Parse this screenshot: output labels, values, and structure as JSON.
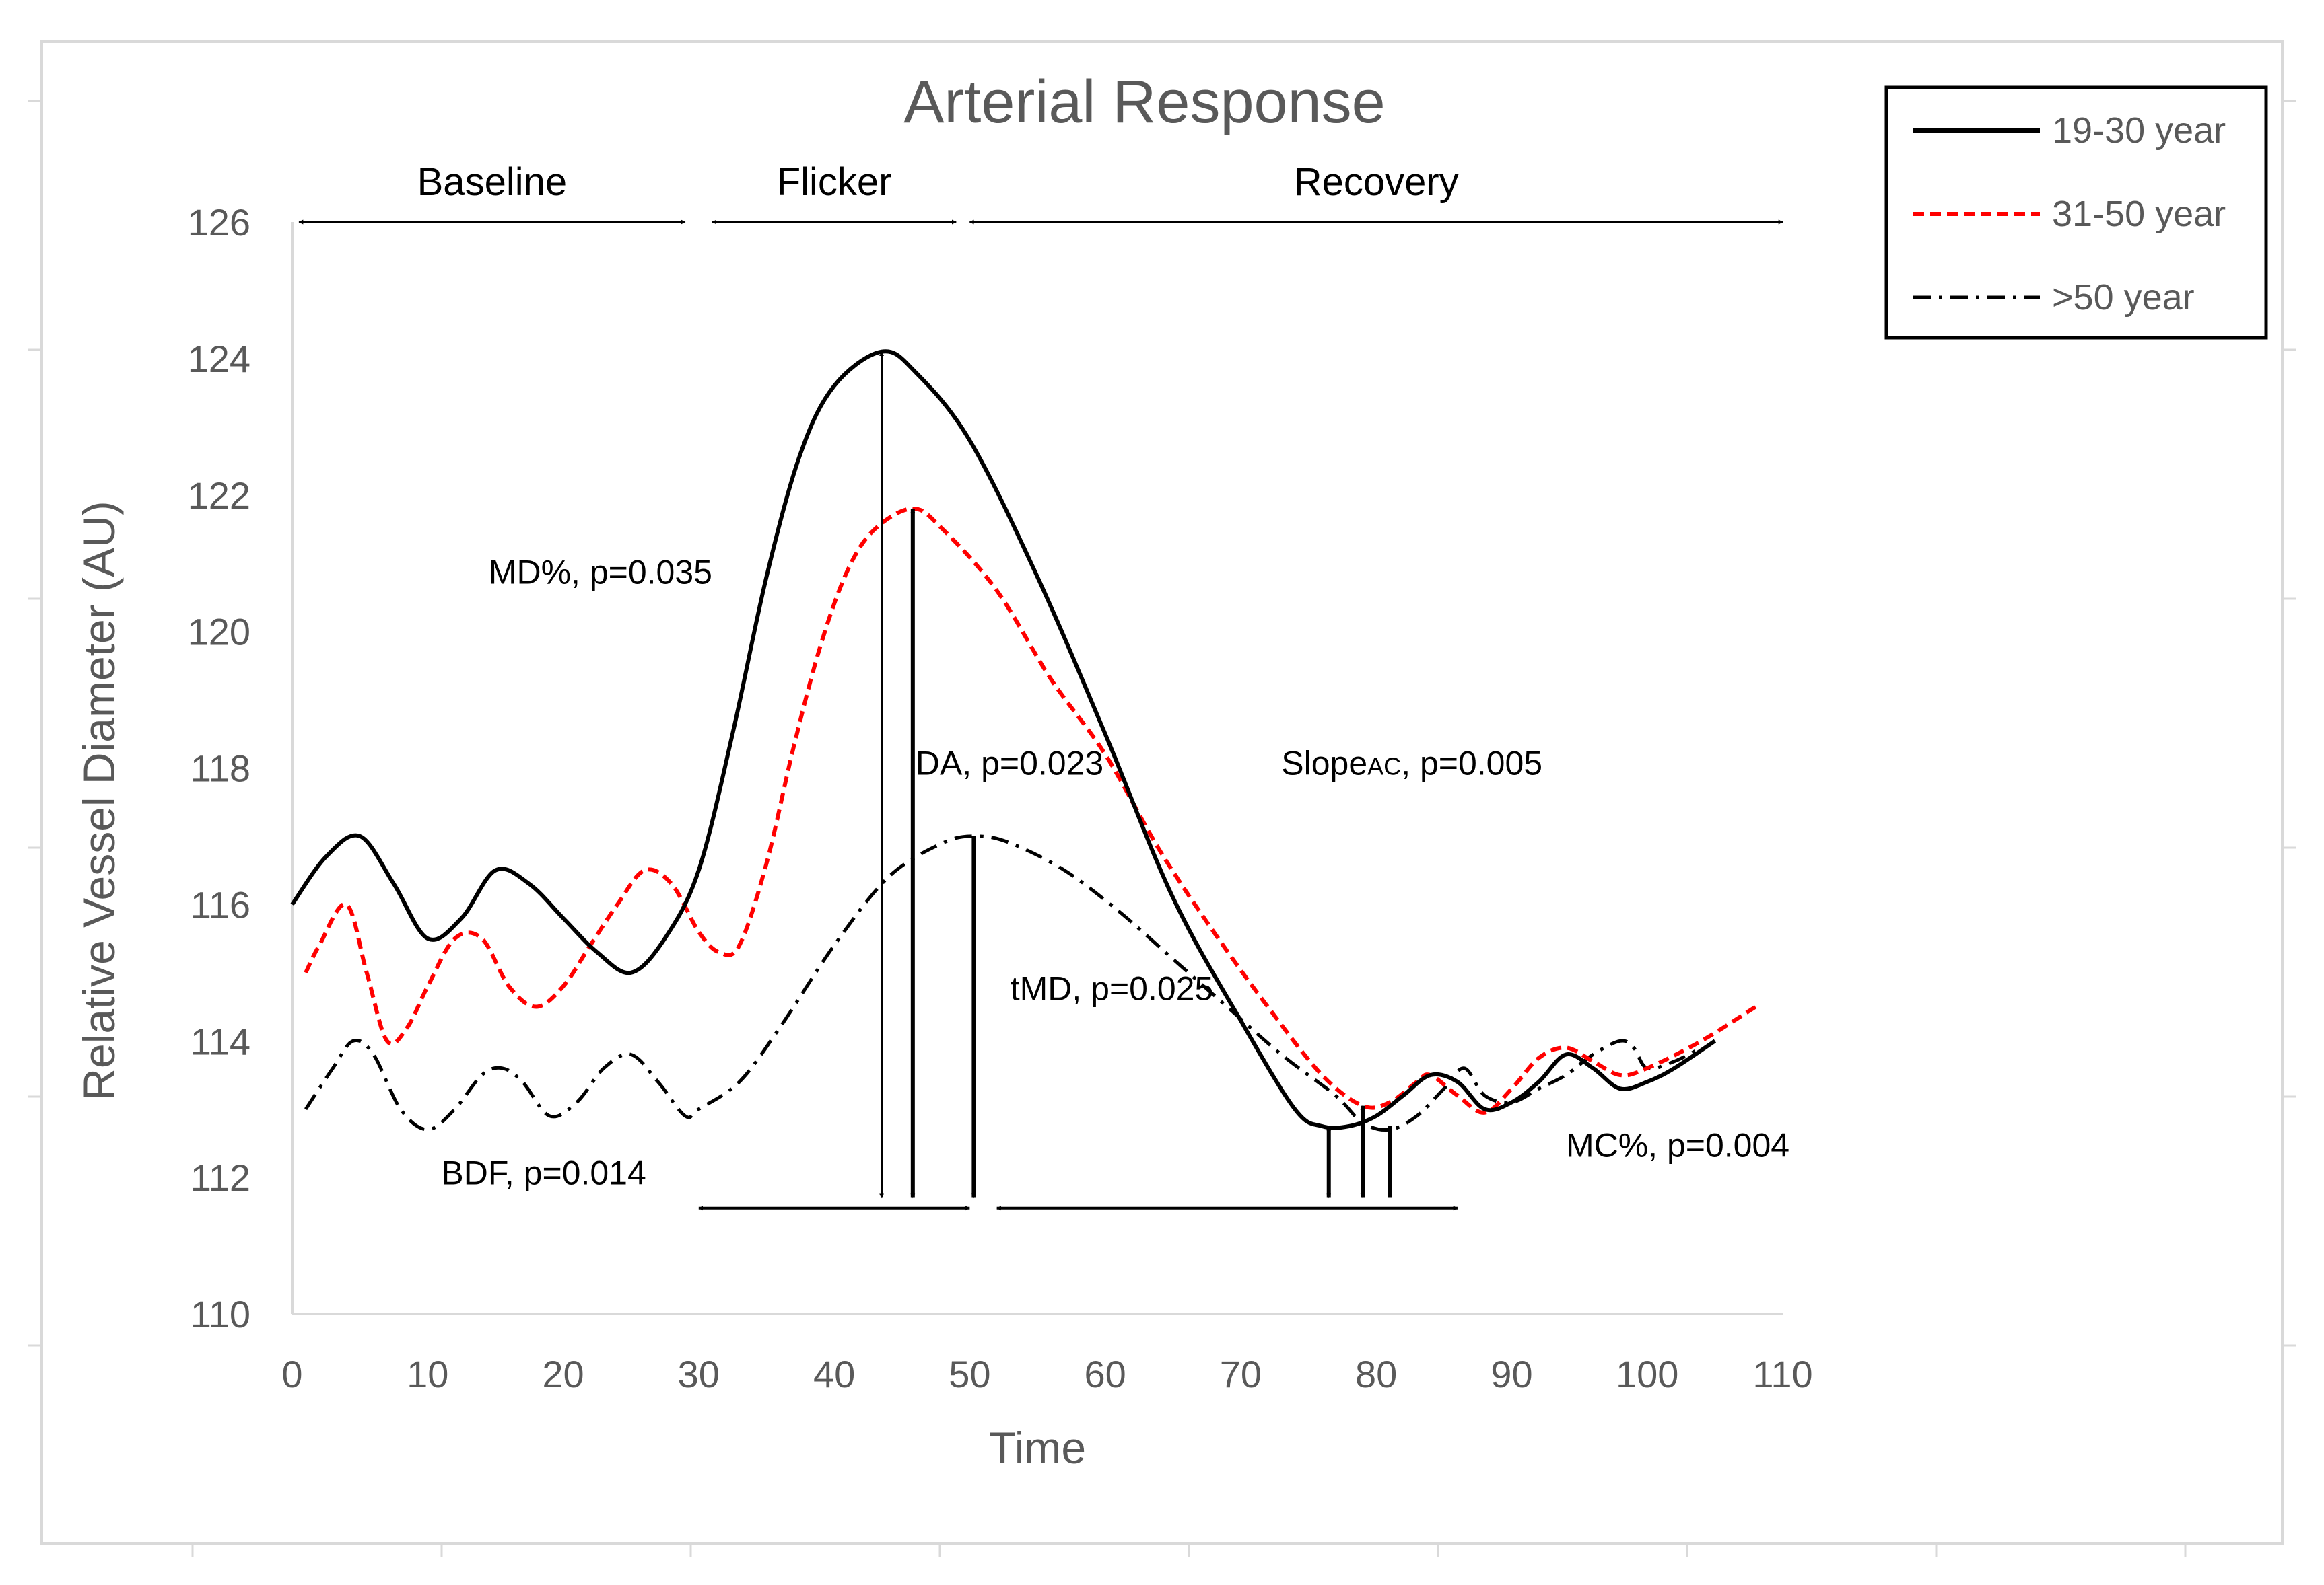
{
  "chart_data": {
    "type": "line",
    "title": "Arterial Response",
    "xlabel": "Time",
    "ylabel": "Relative Vessel Diameter (AU)",
    "xlim": [
      0,
      110
    ],
    "ylim": [
      110,
      126
    ],
    "x_ticks": [
      0,
      10,
      20,
      30,
      40,
      50,
      60,
      70,
      80,
      90,
      100,
      110
    ],
    "y_ticks": [
      110,
      112,
      114,
      116,
      118,
      120,
      122,
      124,
      126
    ],
    "grid": false,
    "legend_position": "top-right",
    "colors": {
      "axis": "#d9d9d9",
      "text": "#595959",
      "black": "#000000",
      "red": "#ff0000"
    },
    "series": [
      {
        "name": "19-30 year",
        "style": "solid",
        "color": "#000000",
        "points": [
          [
            0,
            116
          ],
          [
            2.5,
            116.7
          ],
          [
            5,
            117
          ],
          [
            7.5,
            116.3
          ],
          [
            10,
            115.5
          ],
          [
            12.5,
            115.8
          ],
          [
            15,
            116.5
          ],
          [
            17.5,
            116.3
          ],
          [
            20,
            115.8
          ],
          [
            22.5,
            115.3
          ],
          [
            25,
            115
          ],
          [
            27.5,
            115.5
          ],
          [
            30,
            116.5
          ],
          [
            32.5,
            118.5
          ],
          [
            35,
            120.8
          ],
          [
            37.5,
            122.6
          ],
          [
            40,
            123.6
          ],
          [
            43.5,
            124.1
          ],
          [
            46,
            123.8
          ],
          [
            50,
            122.8
          ],
          [
            55,
            120.8
          ],
          [
            60,
            118.5
          ],
          [
            65,
            116.1
          ],
          [
            70,
            114.3
          ],
          [
            74,
            113
          ],
          [
            76,
            112.75
          ],
          [
            78,
            112.75
          ],
          [
            80,
            112.9
          ],
          [
            82,
            113.2
          ],
          [
            84,
            113.5
          ],
          [
            86,
            113.4
          ],
          [
            88,
            113
          ],
          [
            90,
            113.1
          ],
          [
            92,
            113.4
          ],
          [
            94,
            113.8
          ],
          [
            96,
            113.6
          ],
          [
            98,
            113.3
          ],
          [
            100,
            113.4
          ],
          [
            102,
            113.6
          ],
          [
            105,
            114
          ]
        ]
      },
      {
        "name": "31-50 year",
        "style": "dashed",
        "color": "#ff0000",
        "points": [
          [
            1,
            115
          ],
          [
            2,
            115.4
          ],
          [
            4,
            116
          ],
          [
            5.5,
            115
          ],
          [
            7,
            114
          ],
          [
            8.5,
            114.2
          ],
          [
            10,
            114.8
          ],
          [
            12,
            115.5
          ],
          [
            14,
            115.5
          ],
          [
            16,
            114.8
          ],
          [
            18,
            114.5
          ],
          [
            20,
            114.8
          ],
          [
            22,
            115.4
          ],
          [
            24,
            116
          ],
          [
            26,
            116.5
          ],
          [
            28,
            116.3
          ],
          [
            30,
            115.6
          ],
          [
            31.5,
            115.3
          ],
          [
            33,
            115.4
          ],
          [
            35,
            116.6
          ],
          [
            37,
            118.3
          ],
          [
            39,
            119.8
          ],
          [
            41,
            120.9
          ],
          [
            43,
            121.5
          ],
          [
            45.8,
            121.8
          ],
          [
            48,
            121.5
          ],
          [
            52,
            120.6
          ],
          [
            56,
            119.3
          ],
          [
            60,
            118.2
          ],
          [
            64,
            116.8
          ],
          [
            68,
            115.6
          ],
          [
            72,
            114.5
          ],
          [
            76,
            113.5
          ],
          [
            79,
            113.05
          ],
          [
            81,
            113.1
          ],
          [
            83,
            113.4
          ],
          [
            84,
            113.5
          ],
          [
            86,
            113.2
          ],
          [
            88,
            112.95
          ],
          [
            90,
            113.3
          ],
          [
            92,
            113.75
          ],
          [
            94,
            113.9
          ],
          [
            96,
            113.7
          ],
          [
            98,
            113.5
          ],
          [
            100,
            113.6
          ],
          [
            104,
            114
          ],
          [
            108,
            114.5
          ]
        ]
      },
      {
        "name": ">50 year",
        "style": "dashdot",
        "color": "#000000",
        "points": [
          [
            1,
            113
          ],
          [
            3,
            113.6
          ],
          [
            4.5,
            114
          ],
          [
            6,
            113.8
          ],
          [
            8,
            113
          ],
          [
            10,
            112.7
          ],
          [
            12,
            113
          ],
          [
            14,
            113.5
          ],
          [
            15.5,
            113.6
          ],
          [
            17,
            113.4
          ],
          [
            19,
            112.9
          ],
          [
            21,
            113.1
          ],
          [
            23,
            113.6
          ],
          [
            25,
            113.8
          ],
          [
            27,
            113.4
          ],
          [
            29,
            112.9
          ],
          [
            30,
            113
          ],
          [
            33,
            113.4
          ],
          [
            36,
            114.2
          ],
          [
            40,
            115.4
          ],
          [
            44,
            116.4
          ],
          [
            48,
            116.9
          ],
          [
            50.5,
            117
          ],
          [
            53,
            116.9
          ],
          [
            57,
            116.5
          ],
          [
            61,
            115.9
          ],
          [
            65,
            115.2
          ],
          [
            69,
            114.5
          ],
          [
            73,
            113.8
          ],
          [
            77,
            113.2
          ],
          [
            79,
            112.8
          ],
          [
            81,
            112.7
          ],
          [
            83,
            112.9
          ],
          [
            85,
            113.3
          ],
          [
            86.5,
            113.6
          ],
          [
            88,
            113.2
          ],
          [
            90,
            113.1
          ],
          [
            92,
            113.3
          ],
          [
            94,
            113.5
          ],
          [
            96,
            113.8
          ],
          [
            98,
            114
          ],
          [
            99,
            113.9
          ],
          [
            100,
            113.6
          ],
          [
            102,
            113.7
          ],
          [
            104,
            113.9
          ]
        ]
      }
    ],
    "phases": [
      {
        "label": "Baseline",
        "x": [
          0.5,
          29
        ]
      },
      {
        "label": "Flicker",
        "x": [
          31,
          49
        ]
      },
      {
        "label": "Recovery",
        "x": [
          50,
          110
        ]
      }
    ],
    "annotations": [
      {
        "text": "MD%, p=0.035",
        "x": 14.5,
        "y": 120.7
      },
      {
        "text": "DA, p=0.023",
        "x": 46,
        "y": 117.9
      },
      {
        "text": "tMD, p=0.025",
        "x": 53,
        "y": 114.6
      },
      {
        "text": "BDF, p=0.014",
        "x": 11,
        "y": 111.9
      },
      {
        "text": "MC%, p=0.004",
        "x": 94,
        "y": 112.3
      },
      {
        "text_main": "Slope",
        "text_sub": "AC",
        "text_rest": ", p=0.005",
        "x": 73,
        "y": 117.9
      }
    ],
    "vertical_arrows": [
      {
        "kind": "line",
        "x": 43.5,
        "y": [
          111.7,
          124.1
        ]
      },
      {
        "kind": "bold",
        "x": 45.8,
        "y": [
          111.7,
          121.8
        ]
      },
      {
        "kind": "bold",
        "x": 50.3,
        "y": [
          111.7,
          117
        ]
      },
      {
        "kind": "short",
        "x": 76.5,
        "y": [
          111.7,
          112.75
        ]
      },
      {
        "kind": "short",
        "x": 79,
        "y": [
          111.7,
          113.05
        ]
      },
      {
        "kind": "short",
        "x": 81,
        "y": [
          111.7,
          112.75
        ]
      }
    ],
    "horizontal_arrows": [
      {
        "y": 111.55,
        "x": [
          30,
          50
        ]
      },
      {
        "y": 111.55,
        "x": [
          52,
          86
        ]
      }
    ]
  }
}
